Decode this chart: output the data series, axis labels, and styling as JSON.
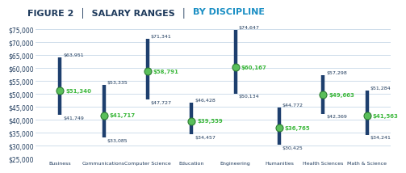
{
  "title_left": "FIGURE 2  │  SALARY RANGES  │  ",
  "title_right": "BY DISCIPLINE",
  "title_left_color": "#1e3a5c",
  "title_right_color": "#1b8fc4",
  "categories": [
    "Business",
    "Communications",
    "Computer Science",
    "Education",
    "Engineering",
    "Humanities",
    "Health Sciences",
    "Math & Science"
  ],
  "high": [
    63951,
    53335,
    71341,
    46428,
    74647,
    44772,
    57298,
    51284
  ],
  "low": [
    41749,
    33085,
    47727,
    34457,
    50134,
    30425,
    42369,
    34241
  ],
  "median": [
    51340,
    41717,
    58791,
    39559,
    60167,
    36765,
    49663,
    41563
  ],
  "high_labels": [
    "$63,951",
    "$53,335",
    "$71,341",
    "$46,428",
    "$74,647",
    "$44,772",
    "$57,298",
    "$51,284"
  ],
  "low_labels": [
    "$41,749",
    "$33,085",
    "$47,727",
    "$34,457",
    "$50,134",
    "$30,425",
    "$42,369",
    "$34,241"
  ],
  "median_labels": [
    "$51,340",
    "$41,717",
    "$58,791",
    "$39,559",
    "$60,167",
    "$36,765",
    "$49,663",
    "$41,563"
  ],
  "bar_color": "#1e3f6e",
  "median_circle_face": "#5abf5a",
  "median_circle_edge": "#2e7d32",
  "high_label_color": "#1e3a5c",
  "low_label_color": "#1e3a5c",
  "median_label_color": "#3db83d",
  "ylim": [
    25000,
    75000
  ],
  "yticks": [
    25000,
    30000,
    35000,
    40000,
    45000,
    50000,
    55000,
    60000,
    65000,
    70000,
    75000
  ],
  "bg_color": "#ffffff",
  "grid_color": "#c8d8e8",
  "title_fontsize": 8.0,
  "label_fontsize": 4.5,
  "median_label_fontsize": 5.0,
  "ytick_fontsize": 5.5,
  "xtick_fontsize": 4.5
}
